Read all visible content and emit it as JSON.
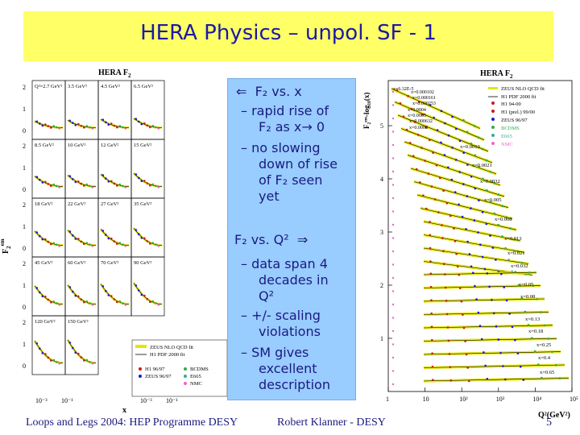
{
  "title": "HERA Physics – unpol. SF - 1",
  "left_plot": {
    "title": "HERA F",
    "title_sub": "2",
    "ylabel": "F",
    "ylabel_sub": "2",
    "ylabel_sup": "em",
    "xlabel": "x",
    "panels": [
      [
        "Q²=2.7 GeV²",
        "3.5 GeV²",
        "4.5 GeV²",
        "6.5 GeV²"
      ],
      [
        "8.5 GeV²",
        "10 GeV²",
        "12 GeV²",
        "15 GeV²"
      ],
      [
        "18 GeV²",
        "22 GeV²",
        "27 GeV²",
        "35 GeV²"
      ],
      [
        "45 GeV²",
        "60 GeV²",
        "70 GeV²",
        "90 GeV²"
      ],
      [
        "120 GeV²",
        "150 GeV²"
      ]
    ],
    "yticks": [
      "2",
      "1",
      "0"
    ],
    "xticks": [
      "10⁻³",
      "10⁻¹"
    ],
    "legend": [
      "ZEUS NLO QCD fit",
      "H1 PDF 2000 fit",
      "H1 96/97",
      "ZEUS 96/97",
      "BCDMS",
      "E665",
      "NMC"
    ]
  },
  "callout": {
    "l1": "F₂ vs. x",
    "l2": "– rapid rise of",
    "l3": "F₂ as x→ 0",
    "l4": "– no slowing",
    "l5": "down of rise",
    "l6": "of F₂ seen",
    "l7": "yet",
    "l8": "F₂ vs. Q²",
    "l9": "– data span  4",
    "l10": "decades  in",
    "l11": "Q²",
    "l12": "– +/- scaling",
    "l13": "violations",
    "l14": "– SM gives",
    "l15": "excellent",
    "l16": "description"
  },
  "right_plot": {
    "title": "HERA F",
    "title_sub": "2",
    "ylabel": "F₂ᵉᵐ-log₁₀(x)",
    "xlabel": "Q²(GeV²)",
    "yticks": [
      "5",
      "4",
      "3",
      "2",
      "1"
    ],
    "xticks": [
      "1",
      "10",
      "10²",
      "10³",
      "10⁴",
      "10⁵"
    ],
    "x_labels_top": [
      "x=6.32E-5",
      "x=0.000102",
      "x=0.000161",
      "x=0.000253",
      "x=0.0004",
      "x=0.0005",
      "x=0.000632",
      "x=0.0008"
    ],
    "x_labels": [
      "x=0.0013",
      "x=0.0021",
      "x=0.0032",
      "x=0.005",
      "x=0.008",
      "x=0.013",
      "x=0.021",
      "x=0.032",
      "x=0.05",
      "x=0.08",
      "x=0.13",
      "x=0.18",
      "x=0.25",
      "x=0.4",
      "x=0.65"
    ],
    "legend": [
      "ZEUS NLO QCD fit",
      "H1 PDF 2000 fit",
      "H1 94-00",
      "H1 (prel.) 99/00",
      "ZEUS 96/97",
      "BCDMS",
      "E665",
      "NMC"
    ]
  },
  "footer": {
    "left": "Loops and Legs 2004: HEP Programme DESY",
    "center": "Robert Klanner - DESY",
    "page": "5"
  },
  "colors": {
    "title_bg": "#ffff66",
    "title_text": "#1a1aa6",
    "callout_bg": "#99ccff",
    "fit_band": "#e6e600",
    "zeus": "#1a1ad9",
    "h1": "#cc1a1a",
    "bcdms": "#2fae4a",
    "nmc": "#ee66cc"
  }
}
